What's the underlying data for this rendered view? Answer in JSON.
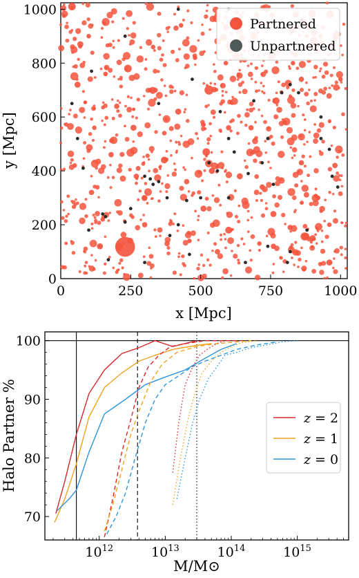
{
  "chart_data": [
    {
      "type": "scatter",
      "xlabel": "x [Mpc]",
      "ylabel": "y [Mpc]",
      "xlim": [
        0,
        1024
      ],
      "ylim": [
        0,
        1024
      ],
      "xticks": [
        0,
        250,
        500,
        750,
        1000
      ],
      "yticks": [
        0,
        200,
        400,
        600,
        800,
        1000
      ],
      "legend": {
        "placement": "top-right",
        "entries": [
          {
            "label": "Partnered",
            "color": "#f4533d"
          },
          {
            "label": "Unpartnered",
            "color": "#2b2b2b"
          }
        ]
      },
      "series": [
        {
          "name": "Partnered",
          "color": "#f4533d",
          "points": [
            [
              230,
              118,
              26
            ],
            [
              40,
              1010,
              10
            ],
            [
              70,
              870,
              8
            ],
            [
              110,
              320,
              7
            ],
            [
              150,
              220,
              6
            ],
            [
              240,
              780,
              10
            ],
            [
              320,
              700,
              6
            ],
            [
              370,
              440,
              9
            ],
            [
              530,
              700,
              12
            ],
            [
              600,
              560,
              7
            ],
            [
              690,
              470,
              6
            ],
            [
              720,
              340,
              7
            ],
            [
              760,
              240,
              8
            ],
            [
              820,
              190,
              7
            ],
            [
              900,
              150,
              8
            ],
            [
              980,
              420,
              7
            ],
            [
              450,
              360,
              7
            ],
            [
              520,
              470,
              10
            ],
            [
              300,
              300,
              6
            ],
            [
              600,
              180,
              9
            ],
            [
              860,
              740,
              7
            ],
            [
              930,
              900,
              6
            ],
            [
              430,
              940,
              6
            ],
            [
              640,
              860,
              8
            ],
            [
              180,
              460,
              7
            ],
            [
              260,
              560,
              8
            ],
            [
              380,
              130,
              7
            ],
            [
              120,
              560,
              6
            ],
            [
              700,
              980,
              7
            ],
            [
              960,
              60,
              8
            ],
            [
              510,
              260,
              8
            ],
            [
              560,
              100,
              7
            ],
            [
              140,
              120,
              8
            ],
            [
              330,
              860,
              6
            ],
            [
              760,
              120,
              7
            ],
            [
              560,
              980,
              7
            ],
            [
              200,
              640,
              7
            ],
            [
              860,
              430,
              7
            ],
            [
              640,
              380,
              8
            ],
            [
              420,
              620,
              8
            ],
            [
              770,
              660,
              9
            ],
            [
              920,
              300,
              6
            ],
            [
              60,
              720,
              8
            ],
            [
              480,
              820,
              6
            ],
            [
              300,
              200,
              7
            ],
            [
              680,
              560,
              7
            ],
            [
              50,
              420,
              6
            ],
            [
              830,
              800,
              6
            ],
            [
              270,
              380,
              7
            ],
            [
              590,
              800,
              6
            ],
            [
              800,
              580,
              6
            ],
            [
              100,
              900,
              6
            ],
            [
              460,
              140,
              6
            ],
            [
              370,
              540,
              6
            ],
            [
              160,
              760,
              6
            ],
            [
              710,
              130,
              6
            ],
            [
              1000,
              740,
              6
            ],
            [
              880,
              900,
              6
            ],
            [
              540,
              400,
              8
            ],
            [
              960,
              200,
              6
            ]
          ]
        },
        {
          "name": "Unpartnered",
          "color": "#2b2b2b",
          "points": [
            [
              420,
              1000
            ],
            [
              600,
              1000
            ],
            [
              640,
              930
            ],
            [
              860,
              960
            ],
            [
              230,
              900
            ],
            [
              110,
              770
            ],
            [
              40,
              650
            ],
            [
              690,
              660
            ],
            [
              820,
              720
            ],
            [
              790,
              690
            ],
            [
              530,
              430
            ],
            [
              300,
              380
            ],
            [
              320,
              370
            ],
            [
              350,
              360
            ],
            [
              330,
              350
            ],
            [
              380,
              300
            ],
            [
              250,
              260
            ],
            [
              100,
              180
            ],
            [
              150,
              240
            ],
            [
              160,
              230
            ],
            [
              230,
              210
            ],
            [
              560,
              400
            ],
            [
              620,
              470
            ],
            [
              720,
              430
            ],
            [
              670,
              390
            ],
            [
              450,
              290
            ],
            [
              500,
              300
            ],
            [
              80,
              410
            ],
            [
              60,
              520
            ],
            [
              930,
              520
            ],
            [
              960,
              480
            ],
            [
              990,
              340
            ],
            [
              420,
              200
            ],
            [
              740,
              120
            ],
            [
              810,
              60
            ],
            [
              820,
              100
            ],
            [
              170,
              70
            ],
            [
              300,
              60
            ],
            [
              460,
              90
            ],
            [
              660,
              60
            ],
            [
              600,
              300
            ],
            [
              880,
              180
            ],
            [
              930,
              600
            ],
            [
              570,
              620
            ],
            [
              760,
              350
            ],
            [
              850,
              690
            ],
            [
              970,
              380
            ],
            [
              350,
              650
            ],
            [
              470,
              740
            ],
            [
              390,
              160
            ],
            [
              740,
              520
            ],
            [
              600,
              520
            ]
          ]
        }
      ]
    },
    {
      "type": "line",
      "xlabel": "M/M⊙",
      "ylabel": "Halo Partner %",
      "xscale": "log",
      "xlim": [
        150000000000.0,
        6000000000000000.0
      ],
      "ylim": [
        66,
        101.5
      ],
      "xticks": [
        {
          "value": 1000000000000.0,
          "base": "10",
          "exp": "12"
        },
        {
          "value": 10000000000000.0,
          "base": "10",
          "exp": "13"
        },
        {
          "value": 100000000000000.0,
          "base": "10",
          "exp": "14"
        },
        {
          "value": 1000000000000000.0,
          "base": "10",
          "exp": "15"
        }
      ],
      "yticks": [
        70,
        80,
        90,
        100
      ],
      "hlines": [
        100
      ],
      "vlines": [
        {
          "x": 450000000000.0,
          "style": "solid"
        },
        {
          "x": 3800000000000.0,
          "style": "dashed"
        },
        {
          "x": 30000000000000.0,
          "style": "dotted"
        }
      ],
      "legend": {
        "placement": "center-right",
        "entries": [
          {
            "label": "z = 2",
            "var": "z",
            "eq": " = 2",
            "color": "#d62728"
          },
          {
            "label": "z = 1",
            "var": "z",
            "eq": " = 1",
            "color": "#f0a21e"
          },
          {
            "label": "z = 0",
            "var": "z",
            "eq": " = 0",
            "color": "#2b95d9"
          }
        ]
      },
      "series": [
        {
          "name": "z = 2",
          "color": "#d62728",
          "style": "solid",
          "x": [
            220000000000.0,
            300000000000.0,
            450000000000.0,
            700000000000.0,
            1200000000000.0,
            2200000000000.0,
            4000000000000.0,
            7000000000000.0,
            13000000000000.0,
            30000000000000.0
          ],
          "y": [
            70.5,
            76,
            84,
            91,
            95,
            97.8,
            98.8,
            100,
            99,
            100
          ]
        },
        {
          "name": "z = 1",
          "color": "#f0a21e",
          "style": "solid",
          "x": [
            210000000000.0,
            300000000000.0,
            450000000000.0,
            700000000000.0,
            1200000000000.0,
            2200000000000.0,
            4000000000000.0,
            7000000000000.0,
            13000000000000.0,
            30000000000000.0,
            50000000000000.0
          ],
          "y": [
            69,
            73,
            79,
            87,
            92,
            94.5,
            96.5,
            97.5,
            98.5,
            99.2,
            99.5
          ]
        },
        {
          "name": "z = 0",
          "color": "#2b95d9",
          "style": "solid",
          "x": [
            230000000000.0,
            350000000000.0,
            450000000000.0,
            700000000000.0,
            1200000000000.0,
            2500000000000.0,
            5000000000000.0,
            10000000000000.0,
            20000000000000.0,
            40000000000000.0,
            70000000000000.0,
            120000000000000.0
          ],
          "y": [
            71,
            73,
            74.5,
            81,
            87.5,
            90,
            92.5,
            93.8,
            95,
            97,
            98.5,
            99.5
          ]
        },
        {
          "name": "z = 2",
          "color": "#d62728",
          "style": "dashed",
          "x": [
            1200000000000.0,
            1600000000000.0,
            2200000000000.0,
            3000000000000.0,
            4000000000000.0,
            5500000000000.0,
            8000000000000.0,
            12000000000000.0,
            20000000000000.0,
            40000000000000.0,
            80000000000000.0,
            150000000000000.0
          ],
          "y": [
            66.5,
            73,
            81,
            86.5,
            92,
            95.5,
            97.5,
            99,
            99.5,
            100,
            100,
            100
          ]
        },
        {
          "name": "z = 1",
          "color": "#f0a21e",
          "style": "dashed",
          "x": [
            1200000000000.0,
            1600000000000.0,
            2200000000000.0,
            3000000000000.0,
            4000000000000.0,
            6000000000000.0,
            9000000000000.0,
            15000000000000.0,
            30000000000000.0,
            60000000000000.0,
            120000000000000.0,
            200000000000000.0
          ],
          "y": [
            67.5,
            72,
            78,
            84,
            88,
            93,
            96,
            98,
            99,
            99.5,
            99.8,
            100
          ]
        },
        {
          "name": "z = 0",
          "color": "#2b95d9",
          "style": "dashed",
          "x": [
            1300000000000.0,
            1800000000000.0,
            2500000000000.0,
            3500000000000.0,
            5000000000000.0,
            7000000000000.0,
            10000000000000.0,
            16000000000000.0,
            25000000000000.0,
            40000000000000.0,
            70000000000000.0,
            120000000000000.0,
            250000000000000.0,
            500000000000000.0
          ],
          "y": [
            67,
            70,
            74,
            80,
            86,
            90,
            92.5,
            94,
            95.5,
            96.5,
            97.5,
            98.5,
            99.3,
            99.8
          ]
        },
        {
          "name": "z = 2",
          "color": "#d62728",
          "style": "dotted",
          "x": [
            13000000000000.0,
            16000000000000.0,
            20000000000000.0,
            26000000000000.0,
            33000000000000.0,
            43000000000000.0,
            60000000000000.0,
            80000000000000.0,
            110000000000000.0
          ],
          "y": [
            77.5,
            86,
            92.5,
            95.5,
            97.5,
            98.5,
            99.5,
            100,
            100
          ]
        },
        {
          "name": "z = 1",
          "color": "#f0a21e",
          "style": "dotted",
          "x": [
            13000000000000.0,
            17000000000000.0,
            22000000000000.0,
            28000000000000.0,
            36000000000000.0,
            50000000000000.0,
            70000000000000.0,
            100000000000000.0,
            150000000000000.0,
            250000000000000.0
          ],
          "y": [
            72,
            80,
            86.5,
            91,
            94.5,
            96.5,
            98,
            99,
            99.7,
            100
          ]
        },
        {
          "name": "z = 0",
          "color": "#2b95d9",
          "style": "dotted",
          "x": [
            15000000000000.0,
            20000000000000.0,
            26000000000000.0,
            33000000000000.0,
            45000000000000.0,
            60000000000000.0,
            80000000000000.0,
            120000000000000.0,
            200000000000000.0,
            350000000000000.0,
            600000000000000.0,
            1000000000000000.0
          ],
          "y": [
            73,
            80,
            86,
            90,
            93.5,
            95.5,
            97.5,
            98,
            98.8,
            99.3,
            99.8,
            100
          ]
        }
      ]
    }
  ]
}
